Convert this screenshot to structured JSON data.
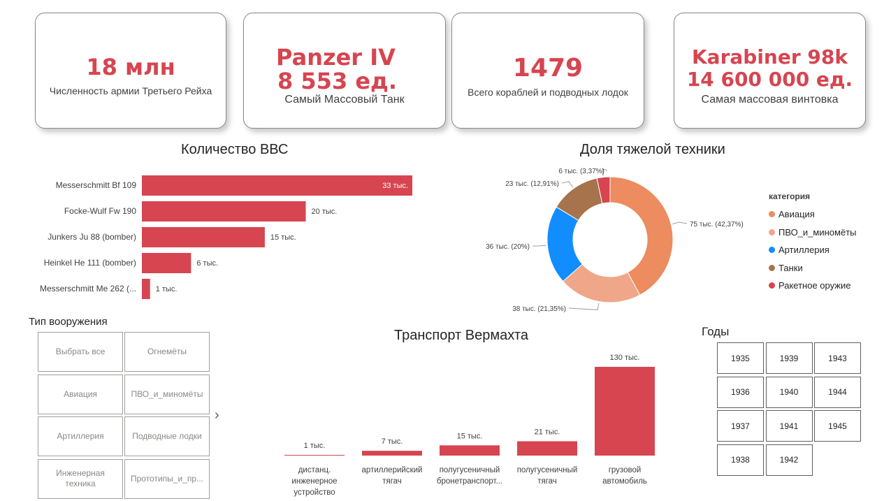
{
  "cards": [
    {
      "value": "18 млн",
      "label": "Численность армии Третьего Рейха"
    },
    {
      "value_line1": "Panzer IV",
      "value_line2": "8 553 ед.",
      "label": "Самый Массовый Танк"
    },
    {
      "value": "1479",
      "label": "Всего кораблей и подводных лодок"
    },
    {
      "value_line1": "Karabiner 98k",
      "value_line2": "14 600 000 ед.",
      "label": "Самая массовая винтовка"
    }
  ],
  "chart_data": [
    {
      "type": "bar",
      "orientation": "horizontal",
      "title": "Количество ВВС",
      "categories": [
        "Messerschmitt Bf 109",
        "Focke-Wulf Fw 190",
        "Junkers Ju 88 (bomber)",
        "Heinkel He 111 (bomber)",
        "Messerschmitt Me 262 (..."
      ],
      "values": [
        33,
        20,
        15,
        6,
        1
      ],
      "data_labels": [
        "33 тыс.",
        "20 тыс.",
        "15 тыс.",
        "6 тыс.",
        "1 тыс."
      ],
      "color": "#d64550"
    },
    {
      "type": "pie",
      "donut": true,
      "title": "Доля тяжелой техники",
      "legend_title": "категория",
      "legend_position": "right",
      "slices": [
        {
          "name": "Авиация",
          "value": 75,
          "label": "75 тыс. (42,37%)",
          "color": "#ec8c5f"
        },
        {
          "name": "ПВО_и_миномёты",
          "value": 38,
          "label": "38 тыс. (21,35%)",
          "color": "#f0a688"
        },
        {
          "name": "Артиллерия",
          "value": 36,
          "label": "36 тыс. (20%)",
          "color": "#118dff"
        },
        {
          "name": "Танки",
          "value": 23,
          "label": "23 тыс. (12,91%)",
          "color": "#a6734c"
        },
        {
          "name": "Ракетное оружие",
          "value": 6,
          "label": "6 тыс. (3,37%)",
          "color": "#d64550"
        }
      ]
    },
    {
      "type": "bar",
      "orientation": "vertical",
      "title": "Транспорт Вермахта",
      "categories": [
        [
          "дистанц.",
          "инженерное",
          "устройство"
        ],
        [
          "артиллерийский",
          "тягач"
        ],
        [
          "полугусеничный",
          "бронетранспорт..."
        ],
        [
          "полугусеничный",
          "тягач"
        ],
        [
          "грузовой",
          "автомобиль"
        ]
      ],
      "values": [
        1,
        7,
        15,
        21,
        130
      ],
      "data_labels": [
        "1 тыс.",
        "7 тыс.",
        "15 тыс.",
        "21 тыс.",
        "130 тыс."
      ],
      "color": "#d64550"
    }
  ],
  "weapon_slicer": {
    "title": "Тип вооружения",
    "items": [
      "Выбрать все",
      "Огнемёты",
      "Авиация",
      "ПВО_и_миномёты",
      "Артиллерия",
      "Подводные лодки",
      "Инженерная техника",
      "Прототипы_и_пр..."
    ],
    "next_icon": "chevron-right-icon"
  },
  "years_slicer": {
    "title": "Годы",
    "years": [
      "1935",
      "1939",
      "1943",
      "1936",
      "1940",
      "1944",
      "1937",
      "1941",
      "1945",
      "1938",
      "1942"
    ]
  }
}
